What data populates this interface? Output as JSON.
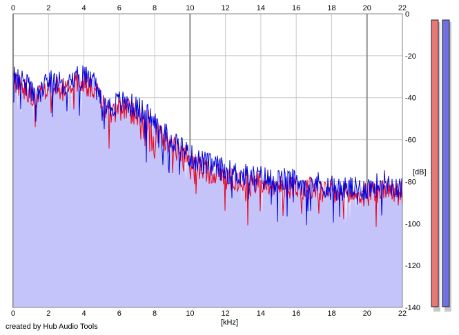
{
  "credit": "created by Hub Audio Tools",
  "chart_data": {
    "type": "area",
    "xlabel": "[kHz]",
    "ylabel": "[dB]",
    "xlim": [
      0,
      22
    ],
    "ylim": [
      -140,
      0
    ],
    "x_ticks": [
      "0",
      "2",
      "4",
      "6",
      "8",
      "10",
      "12",
      "14",
      "16",
      "18",
      "20",
      "22"
    ],
    "y_ticks": [
      "0",
      "-20",
      "-40",
      "-60",
      "-80",
      "-100",
      "-120",
      "-140"
    ],
    "grid": true,
    "colors": {
      "fill": "#c4c4fa",
      "blue_line": "#0000dd",
      "red_line": "#e8001c",
      "grid": "#c8c8c8",
      "major_grid": "#909090",
      "meter_red": "#e87878",
      "meter_blue": "#7070e0"
    },
    "series": [
      {
        "x": [
          0,
          0.5,
          1,
          1.5,
          2,
          2.5,
          3,
          3.5,
          4,
          4.5,
          5,
          5.5,
          6,
          6.5,
          7,
          7.5,
          8,
          8.5,
          9,
          9.5,
          10,
          10.5,
          11,
          11.5,
          12,
          12.5,
          13,
          13.5,
          14,
          14.5,
          15,
          15.5,
          16,
          16.5,
          17,
          17.5,
          18,
          18.5,
          19,
          19.5,
          20,
          20.5,
          21,
          21.5,
          22
        ],
        "values": [
          -30,
          -33,
          -36,
          -37,
          -33,
          -32,
          -35,
          -29,
          -30,
          -32,
          -40,
          -45,
          -42,
          -43,
          -45,
          -47,
          -52,
          -57,
          -60,
          -63,
          -68,
          -70,
          -72,
          -73,
          -75,
          -76,
          -77,
          -78,
          -78,
          -79,
          -80,
          -79,
          -80,
          -81,
          -80,
          -82,
          -82,
          -84,
          -83,
          -84,
          -83,
          -82,
          -80,
          -82,
          -83
        ]
      },
      {
        "x": [
          0,
          0.5,
          1,
          1.5,
          2,
          2.5,
          3,
          3.5,
          4,
          4.5,
          5,
          5.5,
          6,
          6.5,
          7,
          7.5,
          8,
          8.5,
          9,
          9.5,
          10,
          10.5,
          11,
          11.5,
          12,
          12.5,
          13,
          13.5,
          14,
          14.5,
          15,
          15.5,
          16,
          16.5,
          17,
          17.5,
          18,
          18.5,
          19,
          19.5,
          20,
          20.5,
          21,
          21.5,
          22
        ],
        "values": [
          -32,
          -34,
          -38,
          -40,
          -36,
          -35,
          -37,
          -32,
          -33,
          -35,
          -43,
          -48,
          -45,
          -46,
          -48,
          -50,
          -55,
          -60,
          -63,
          -66,
          -71,
          -73,
          -75,
          -76,
          -78,
          -79,
          -80,
          -81,
          -80,
          -81,
          -83,
          -82,
          -83,
          -84,
          -83,
          -85,
          -85,
          -87,
          -86,
          -87,
          -86,
          -85,
          -83,
          -85,
          -86
        ]
      }
    ],
    "level_meters": [
      {
        "level": 1.0
      },
      {
        "level": 1.0
      }
    ]
  }
}
